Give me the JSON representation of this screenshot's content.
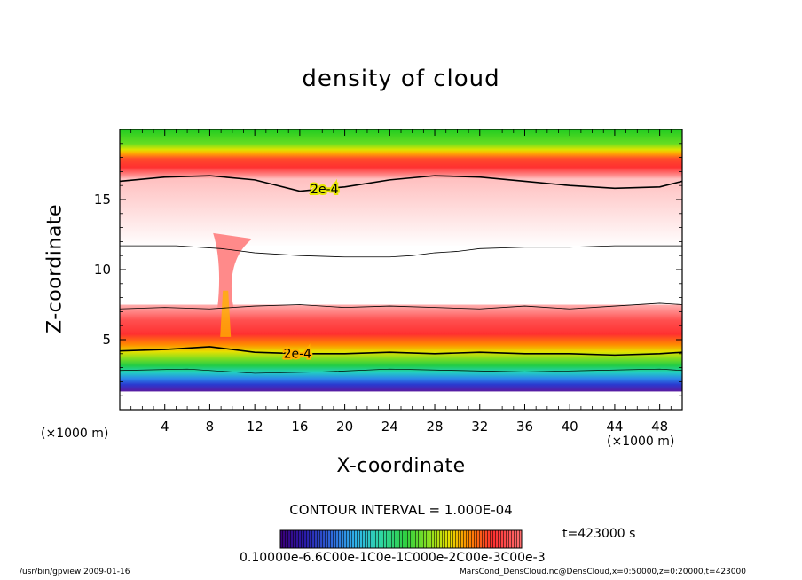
{
  "chart_data": {
    "type": "heatmap",
    "title": "density of cloud",
    "xlabel": "X-coordinate",
    "ylabel": "Z-coordinate",
    "x_unit": "(×1000 m)",
    "y_unit": "(×1000 m)",
    "xlim": [
      0,
      50
    ],
    "ylim": [
      0,
      20
    ],
    "x_ticks": [
      4,
      8,
      12,
      16,
      20,
      24,
      28,
      32,
      36,
      40,
      44,
      48
    ],
    "y_ticks": [
      5,
      10,
      15
    ],
    "contour_labels": [
      "2e-4",
      "2e-4"
    ],
    "upper_contour_2e4": {
      "x": [
        0,
        4,
        8,
        12,
        16,
        20,
        24,
        28,
        32,
        36,
        40,
        44,
        48,
        50
      ],
      "z": [
        16.3,
        16.6,
        16.7,
        16.4,
        15.6,
        15.9,
        16.4,
        16.7,
        16.6,
        16.3,
        16.0,
        15.8,
        15.9,
        16.3
      ]
    },
    "lower_contour_2e4": {
      "x": [
        0,
        4,
        8,
        12,
        16,
        20,
        24,
        28,
        32,
        36,
        40,
        44,
        48,
        50
      ],
      "z": [
        4.2,
        4.3,
        4.5,
        4.1,
        4.0,
        4.0,
        4.1,
        4.0,
        4.1,
        4.0,
        4.0,
        3.9,
        4.0,
        4.1
      ]
    },
    "colorbar": {
      "labels_text": "0.10000e-6.6C00e-1C0e-1C000e-2C00e-3C00e-3",
      "range": [
        0.0,
        0.001
      ],
      "colors": [
        "#3b007a",
        "#2a1aa8",
        "#2f6ee0",
        "#2fb8e8",
        "#2fd6a0",
        "#30d040",
        "#8ee020",
        "#e8e000",
        "#ff8800",
        "#ff3030",
        "#ff7070"
      ]
    },
    "colors": {
      "outer_green": "#22cc22",
      "yellow": "#e6e600",
      "orange": "#ff9000",
      "red": "#ff2a2a",
      "pink": "#ff9a9a",
      "blue": "#2244dd",
      "purple": "#5a1aa0"
    }
  },
  "contour_interval": "CONTOUR INTERVAL = 1.000E-04",
  "time_label": "t=423000 s",
  "footer_left": "/usr/bin/gpview   2009-01-16",
  "footer_right": "MarsCond_DensCloud.nc@DensCloud,x=0:50000,z=0:20000,t=423000"
}
